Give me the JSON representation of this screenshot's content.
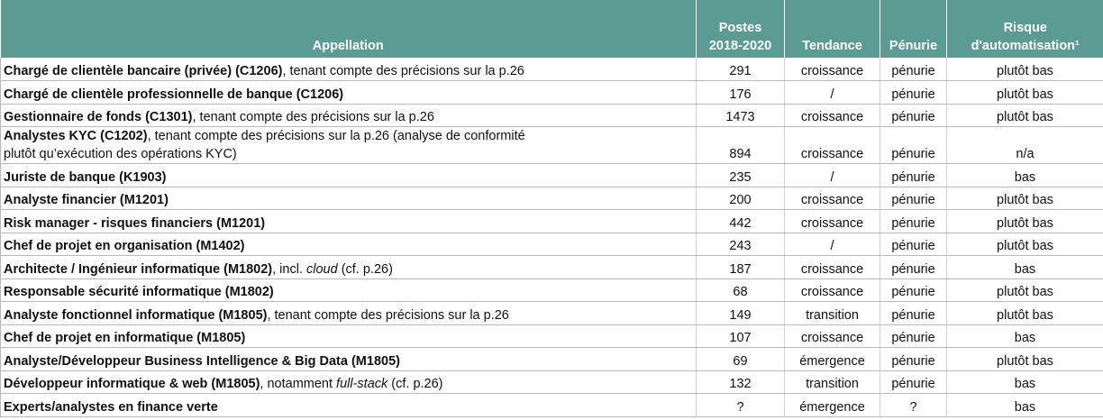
{
  "table": {
    "columns": [
      [
        "Appellation"
      ],
      [
        "Postes",
        "2018-2020"
      ],
      [
        "Tendance"
      ],
      [
        "Pénurie"
      ],
      [
        "Risque",
        "d'automatisation¹"
      ]
    ],
    "rows": [
      {
        "appellation": [
          [
            {
              "text": "Chargé de clientèle bancaire (privée) (C1206)",
              "style": "bold"
            },
            {
              "text": ", tenant compte des précisions sur la p.26",
              "style": "normal"
            }
          ]
        ],
        "postes": 291,
        "tendance": "croissance",
        "penurie": "pénurie",
        "risque": "plutôt bas"
      },
      {
        "appellation": [
          [
            {
              "text": "Chargé de clientèle professionnelle de banque (C1206)",
              "style": "bold"
            }
          ]
        ],
        "postes": 176,
        "tendance": "/",
        "penurie": "pénurie",
        "risque": "plutôt bas"
      },
      {
        "appellation": [
          [
            {
              "text": "Gestionnaire de fonds (C1301)",
              "style": "bold"
            },
            {
              "text": ", tenant compte des précisions sur la p.26",
              "style": "normal"
            }
          ]
        ],
        "postes": 1473,
        "tendance": "croissance",
        "penurie": "pénurie",
        "risque": "plutôt bas"
      },
      {
        "appellation": [
          [
            {
              "text": "Analystes KYC (C1202)",
              "style": "bold"
            },
            {
              "text": ", tenant compte des précisions sur la p.26 (analyse de conformité",
              "style": "normal"
            }
          ],
          [
            {
              "text": "plutôt qu’exécution des opérations KYC)",
              "style": "normal"
            }
          ]
        ],
        "postes": 894,
        "tendance": "croissance",
        "penurie": "pénurie",
        "risque": "n/a"
      },
      {
        "appellation": [
          [
            {
              "text": "Juriste de banque (K1903)",
              "style": "bold"
            }
          ]
        ],
        "postes": 235,
        "tendance": "/",
        "penurie": "pénurie",
        "risque": "bas"
      },
      {
        "appellation": [
          [
            {
              "text": "Analyste financier (M1201)",
              "style": "bold"
            }
          ]
        ],
        "postes": 200,
        "tendance": "croissance",
        "penurie": "pénurie",
        "risque": "plutôt bas"
      },
      {
        "appellation": [
          [
            {
              "text": "Risk manager - risques financiers (M1201)",
              "style": "bold"
            }
          ]
        ],
        "postes": 442,
        "tendance": "croissance",
        "penurie": "pénurie",
        "risque": "plutôt bas"
      },
      {
        "appellation": [
          [
            {
              "text": "Chef de projet en organisation (M1402)",
              "style": "bold"
            }
          ]
        ],
        "postes": 243,
        "tendance": "/",
        "penurie": "pénurie",
        "risque": "plutôt bas"
      },
      {
        "appellation": [
          [
            {
              "text": "Architecte / Ingénieur informatique (M1802)",
              "style": "bold"
            },
            {
              "text": ", incl. ",
              "style": "normal"
            },
            {
              "text": "cloud",
              "style": "italic"
            },
            {
              "text": " (cf. p.26)",
              "style": "normal"
            }
          ]
        ],
        "postes": 187,
        "tendance": "croissance",
        "penurie": "pénurie",
        "risque": "bas"
      },
      {
        "appellation": [
          [
            {
              "text": "Responsable sécurité informatique (M1802)",
              "style": "bold"
            }
          ]
        ],
        "postes": 68,
        "tendance": "croissance",
        "penurie": "pénurie",
        "risque": "plutôt bas"
      },
      {
        "appellation": [
          [
            {
              "text": "Analyste fonctionnel informatique (M1805)",
              "style": "bold"
            },
            {
              "text": ", tenant compte des précisions sur la p.26",
              "style": "normal"
            }
          ]
        ],
        "postes": 149,
        "tendance": "transition",
        "penurie": "pénurie",
        "risque": "plutôt bas"
      },
      {
        "appellation": [
          [
            {
              "text": "Chef de projet en informatique (M1805)",
              "style": "bold"
            }
          ]
        ],
        "postes": 107,
        "tendance": "croissance",
        "penurie": "pénurie",
        "risque": "bas"
      },
      {
        "appellation": [
          [
            {
              "text": "Analyste/Développeur Business Intelligence & Big Data (M1805)",
              "style": "bold"
            }
          ]
        ],
        "postes": 69,
        "tendance": "émergence",
        "penurie": "pénurie",
        "risque": "plutôt bas"
      },
      {
        "appellation": [
          [
            {
              "text": "Développeur informatique & web (M1805)",
              "style": "bold"
            },
            {
              "text": ", notamment ",
              "style": "normal"
            },
            {
              "text": "full-stack",
              "style": "italic"
            },
            {
              "text": " (cf. p.26)",
              "style": "normal"
            }
          ]
        ],
        "postes": 132,
        "tendance": "transition",
        "penurie": "pénurie",
        "risque": "bas"
      },
      {
        "appellation": [
          [
            {
              "text": "Experts/analystes en finance verte",
              "style": "bold"
            }
          ]
        ],
        "postes": "?",
        "tendance": "émergence",
        "penurie": "?",
        "risque": "bas"
      }
    ]
  }
}
